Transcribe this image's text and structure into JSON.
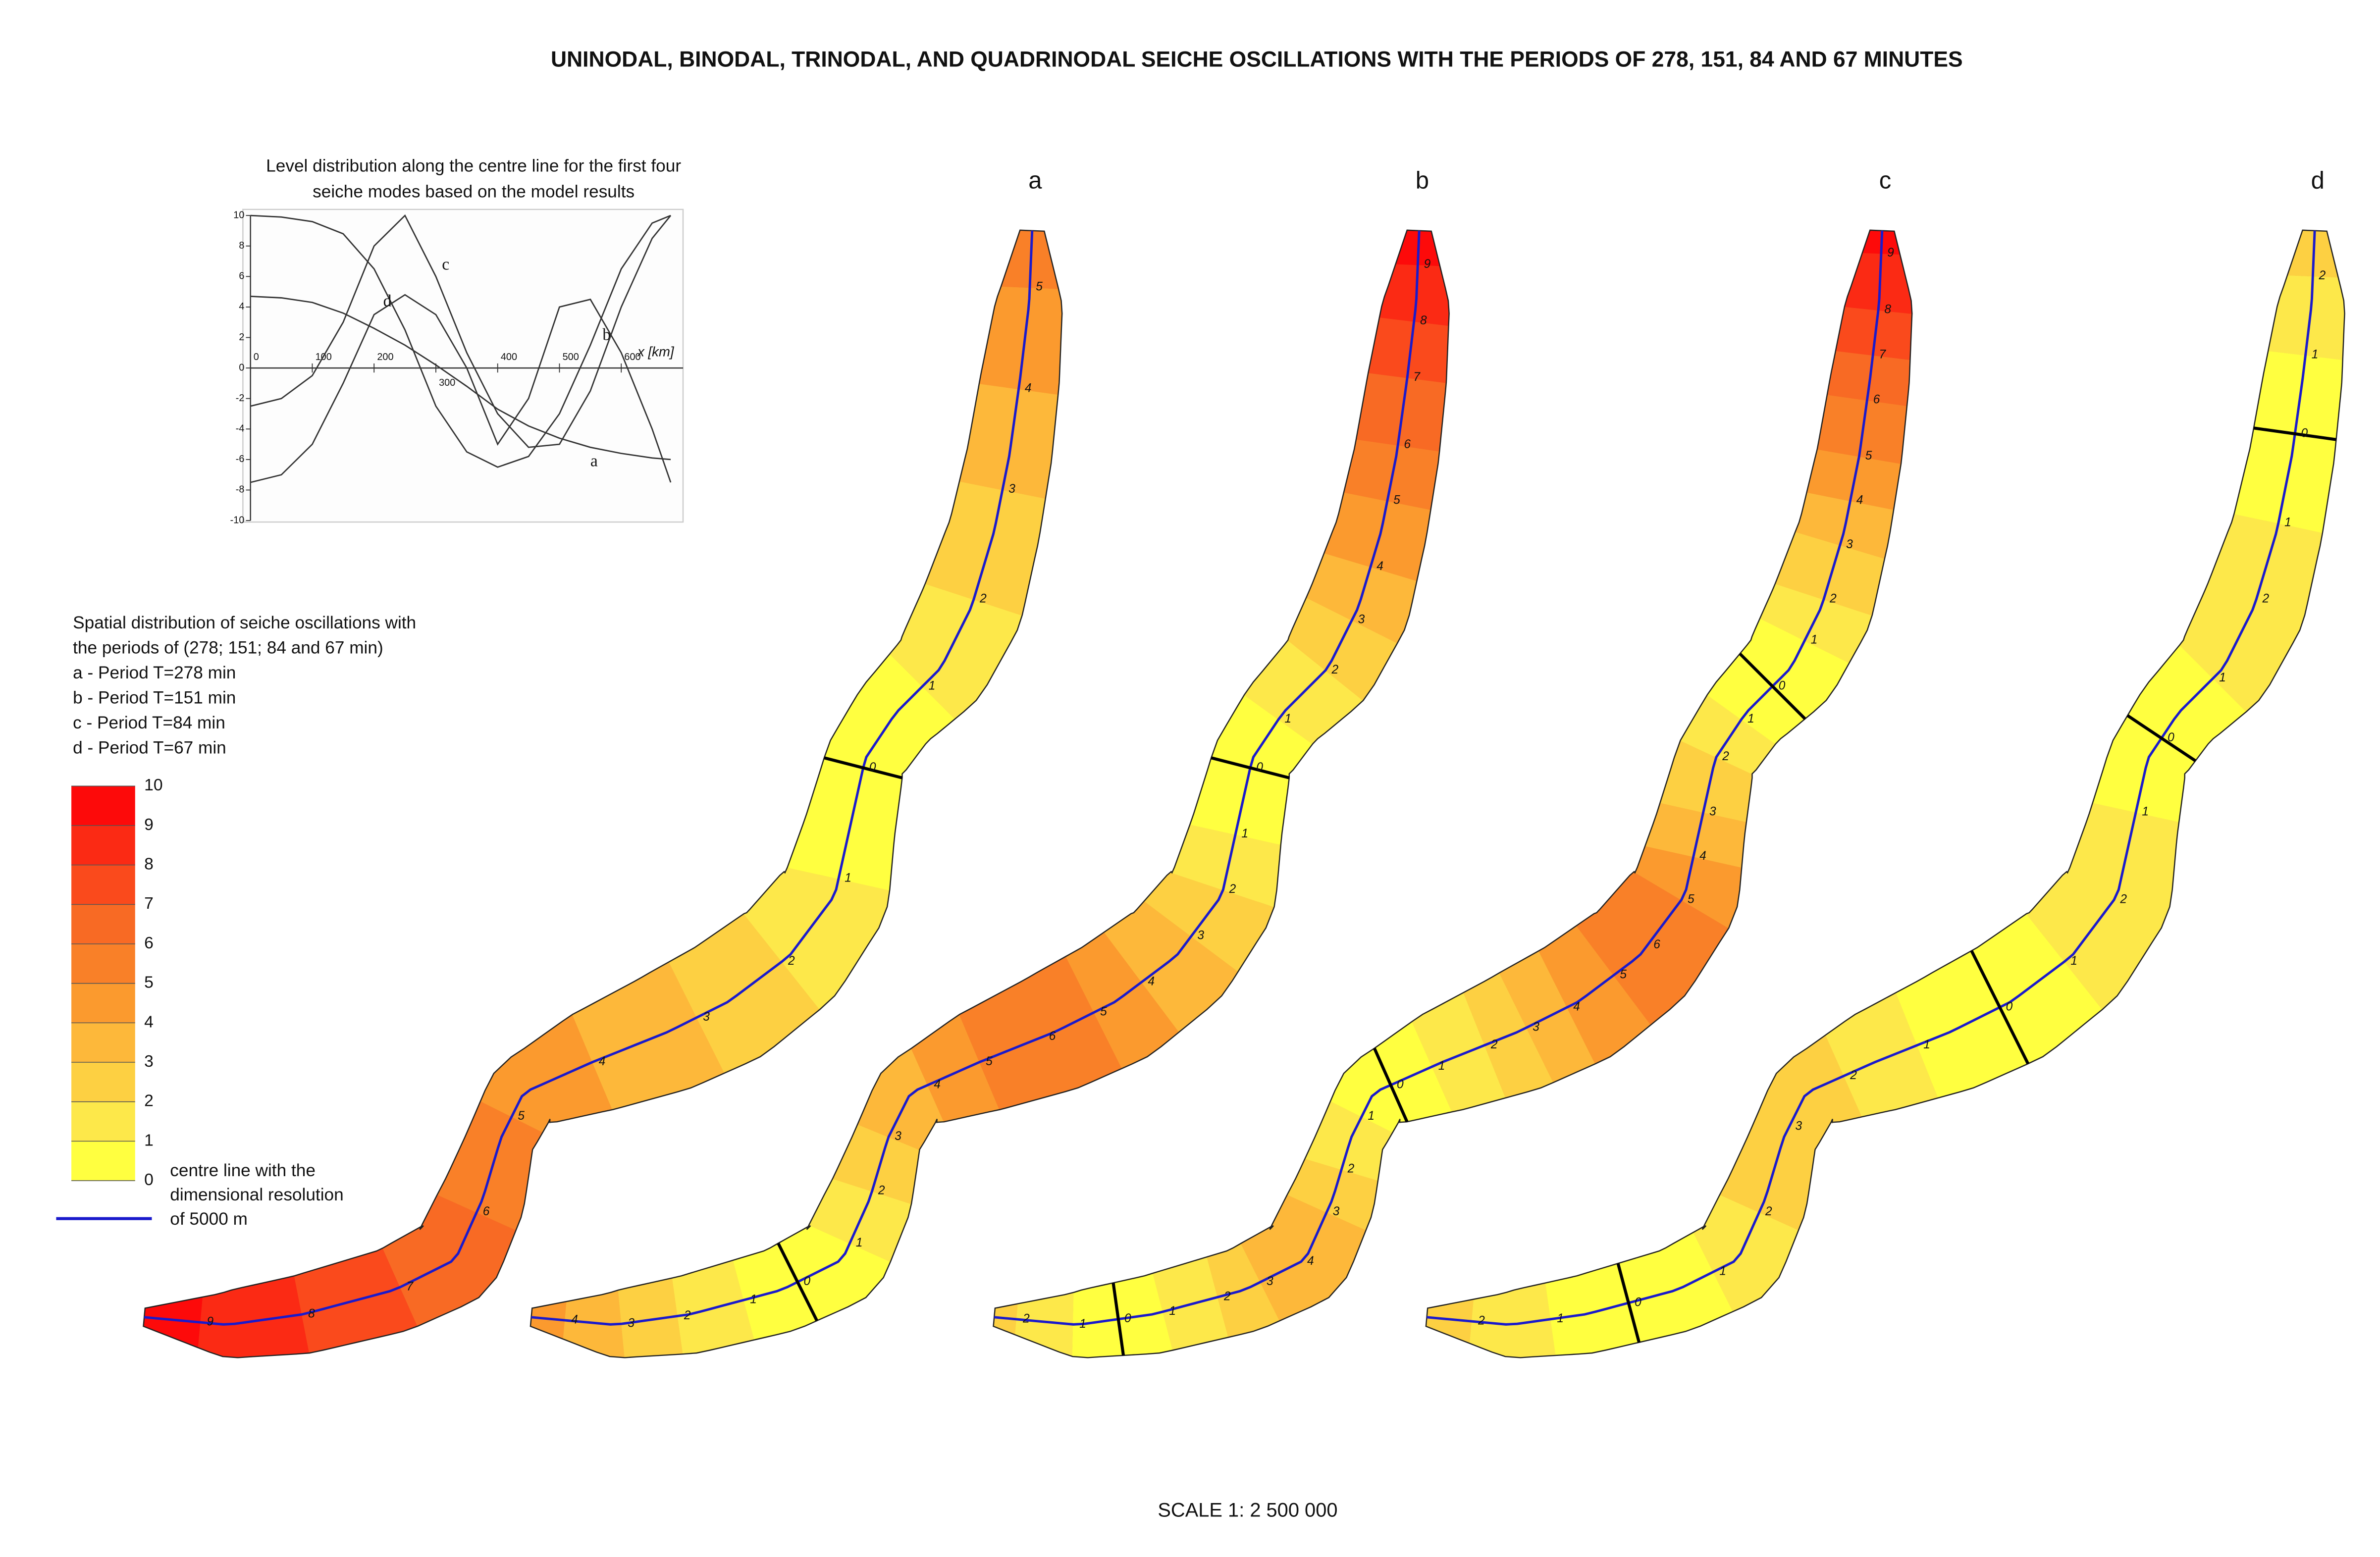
{
  "title": "UNINODAL, BINODAL, TRINODAL, AND QUADRINODAL SEICHE OSCILLATIONS WITH THE PERIODS OF 278, 151, 84 AND 67 MINUTES",
  "chart_data": {
    "type": "line",
    "title_lines": [
      "Level distribution along the centre line for the first four",
      "seiche modes based on the model results"
    ],
    "x_label": "x [km]",
    "x": [
      0,
      50,
      100,
      150,
      200,
      250,
      300,
      350,
      400,
      450,
      500,
      550,
      600,
      650,
      680
    ],
    "series": [
      {
        "name": "a",
        "color": "#333333",
        "values": [
          4.7,
          4.6,
          4.3,
          3.6,
          2.6,
          1.5,
          0.2,
          -1.2,
          -2.7,
          -3.8,
          -4.6,
          -5.2,
          -5.6,
          -5.9,
          -6
        ]
      },
      {
        "name": "b",
        "color": "#333333",
        "values": [
          10,
          9.9,
          9.6,
          8.8,
          6.5,
          2.5,
          -2.5,
          -5.5,
          -6.5,
          -5.8,
          -3,
          1.5,
          6.5,
          9.5,
          10
        ]
      },
      {
        "name": "c",
        "color": "#333333",
        "values": [
          -2.5,
          -2,
          -0.5,
          3,
          8,
          10,
          6,
          1,
          -3,
          -5.2,
          -5,
          -1.5,
          4,
          8.5,
          10
        ]
      },
      {
        "name": "d",
        "color": "#333333",
        "values": [
          -7.5,
          -7,
          -5,
          -1,
          3.5,
          4.8,
          3.5,
          0,
          -5,
          -2,
          4,
          4.5,
          1,
          -4,
          -7.5
        ]
      }
    ],
    "xlim": [
      0,
      700
    ],
    "ylim": [
      -10,
      10
    ],
    "xticks": [
      0,
      100,
      200,
      300,
      400,
      500,
      600
    ],
    "yticks": [
      -10,
      -8,
      -6,
      -4,
      -2,
      0,
      2,
      4,
      6,
      8,
      10
    ]
  },
  "legend": {
    "lines": [
      "Spatial distribution of seiche oscillations with",
      "the periods of (278; 151; 84 and 67 min)",
      "a - Period T=278 min",
      "b - Period T=151 min",
      "c - Period T=84 min",
      "d - Period T=67 min"
    ],
    "levels": [
      0,
      1,
      2,
      3,
      4,
      5,
      6,
      7,
      8,
      9,
      10
    ],
    "colors": [
      "#ffff40",
      "#fde84a",
      "#fdd042",
      "#fdb83a",
      "#fb9a2e",
      "#f98028",
      "#f86a24",
      "#fa4a1c",
      "#fb2a14",
      "#fd0a0a"
    ],
    "centre_line": {
      "label_lines": [
        "centre line with the",
        "dimensional resolution",
        "of 5000 m"
      ],
      "color": "#1a1acc"
    }
  },
  "panels": [
    {
      "letter": "a",
      "centre_line_labels": [
        9,
        8,
        7,
        6,
        5,
        4,
        3,
        2,
        1,
        0,
        1,
        2,
        3,
        4,
        5
      ]
    },
    {
      "letter": "b",
      "centre_line_labels": [
        4,
        3,
        2,
        1,
        0,
        1,
        2,
        3,
        4,
        5,
        6,
        5,
        4,
        3,
        2,
        1,
        0,
        1,
        2,
        3,
        4,
        5,
        6,
        7,
        8,
        9
      ]
    },
    {
      "letter": "c",
      "centre_line_labels": [
        2,
        1,
        0,
        1,
        2,
        3,
        4,
        3,
        2,
        1,
        0,
        1,
        2,
        3,
        4,
        5,
        6,
        5,
        4,
        3,
        2,
        1,
        0,
        1,
        2,
        3,
        4,
        5,
        6,
        7,
        8,
        9
      ]
    },
    {
      "letter": "d",
      "centre_line_labels": [
        2,
        1,
        0,
        1,
        2,
        3,
        2,
        1,
        0,
        1,
        2,
        1,
        0,
        1,
        2,
        1,
        0,
        1,
        2
      ]
    }
  ],
  "scale": "SCALE 1: 2 500 000"
}
